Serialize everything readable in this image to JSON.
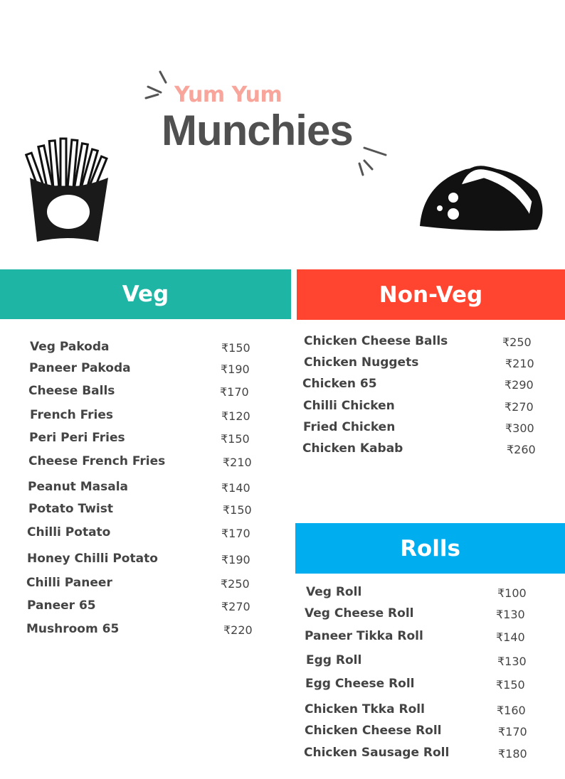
{
  "title": {
    "line1": "Yum Yum",
    "line2": "Munchies"
  },
  "colors": {
    "veg": "#1fb5a5",
    "nonveg": "#ff4530",
    "rolls": "#00aeef",
    "title_accent": "#f8a59b",
    "text": "#444444"
  },
  "icons": [
    "french-fries-icon",
    "taco-icon"
  ],
  "sections": {
    "veg": {
      "title": "Veg",
      "items": [
        {
          "name": "Veg Pakoda",
          "price": "₹150"
        },
        {
          "name": "Paneer Pakoda",
          "price": "₹190"
        },
        {
          "name": "Cheese Balls",
          "price": "₹170"
        },
        {
          "name": "French Fries",
          "price": "₹120"
        },
        {
          "name": "Peri Peri Fries",
          "price": "₹150"
        },
        {
          "name": "Cheese French Fries",
          "price": "₹210"
        },
        {
          "name": "Peanut Masala",
          "price": "₹140"
        },
        {
          "name": "Potato Twist",
          "price": "₹150"
        },
        {
          "name": "Chilli Potato",
          "price": "₹170"
        },
        {
          "name": "Honey Chilli Potato",
          "price": "₹190"
        },
        {
          "name": "Chilli Paneer",
          "price": "₹250"
        },
        {
          "name": "Paneer 65",
          "price": "₹270"
        },
        {
          "name": "Mushroom  65",
          "price": "₹220"
        }
      ]
    },
    "nonveg": {
      "title": "Non-Veg",
      "items": [
        {
          "name": "Chicken Cheese Balls",
          "price": "₹250"
        },
        {
          "name": "Chicken Nuggets",
          "price": "₹210"
        },
        {
          "name": "Chicken 65",
          "price": "₹290"
        },
        {
          "name": "Chilli Chicken",
          "price": "₹270"
        },
        {
          "name": "Fried Chicken",
          "price": "₹300"
        },
        {
          "name": "Chicken Kabab",
          "price": "₹260"
        }
      ]
    },
    "rolls": {
      "title": "Rolls",
      "items": [
        {
          "name": "Veg Roll",
          "price": "₹100"
        },
        {
          "name": "Veg Cheese Roll",
          "price": "₹130"
        },
        {
          "name": "Paneer Tikka Roll",
          "price": "₹140"
        },
        {
          "name": "Egg Roll",
          "price": "₹130"
        },
        {
          "name": "Egg Cheese Roll",
          "price": "₹150"
        },
        {
          "name": "Chicken Tkka Roll",
          "price": "₹160"
        },
        {
          "name": "Chicken Cheese Roll",
          "price": "₹170"
        },
        {
          "name": "Chicken Sausage Roll",
          "price": "₹180"
        }
      ]
    }
  }
}
